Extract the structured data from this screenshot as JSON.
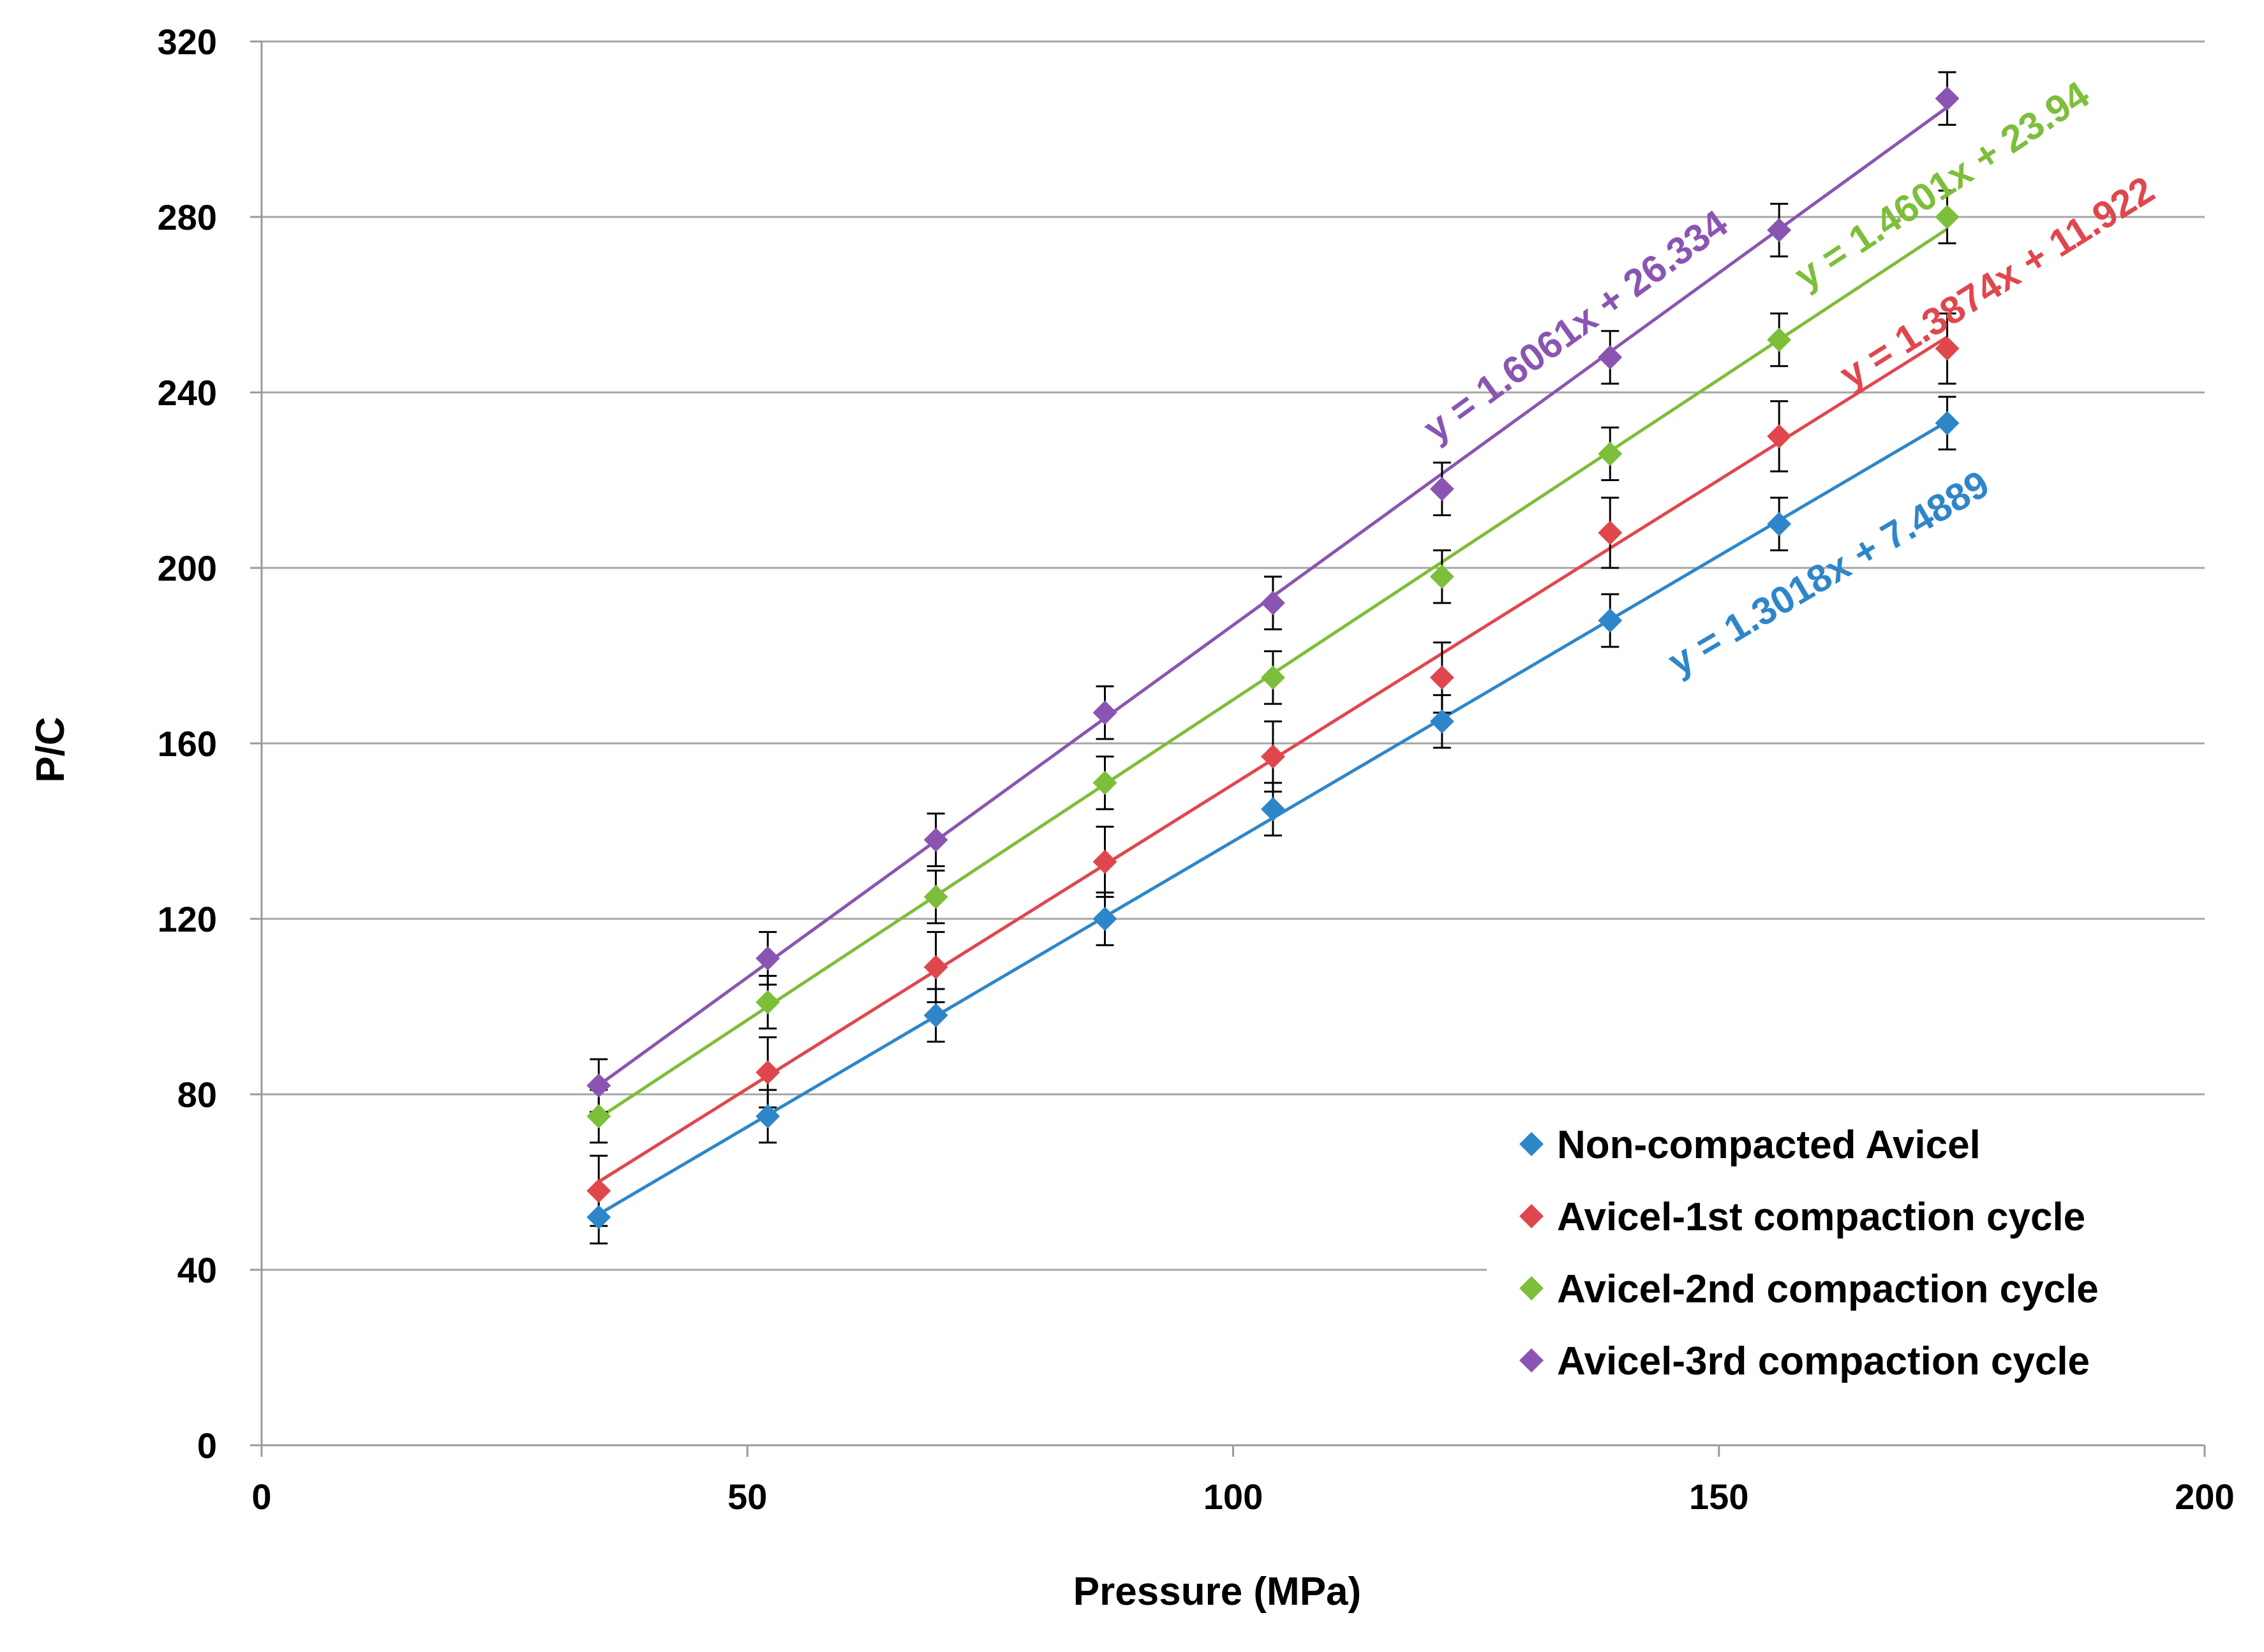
{
  "chart_data": {
    "type": "scatter",
    "title": "",
    "xlabel": "Pressure  (MPa)",
    "ylabel": "P/C",
    "xlim": [
      0,
      200
    ],
    "ylim": [
      0,
      320
    ],
    "x_ticks": [
      0,
      50,
      100,
      150,
      200
    ],
    "x_tick_labels": [
      "0",
      "50",
      "100",
      "150",
      "200"
    ],
    "y_ticks": [
      0,
      40,
      80,
      120,
      160,
      200,
      240,
      280,
      320
    ],
    "y_tick_labels": [
      "0",
      "40",
      "80",
      "120",
      "160",
      "200",
      "240",
      "280",
      "320"
    ],
    "grid": "horizontal",
    "legend_position": "bottom-right",
    "x": [
      34.7,
      52.1,
      69.4,
      86.8,
      104.1,
      121.5,
      138.8,
      156.2,
      173.5
    ],
    "series": [
      {
        "name": "Non-compacted Avicel",
        "color": "#2E86C9",
        "marker": "diamond",
        "values": [
          52,
          75,
          98,
          120,
          145,
          165,
          188,
          210,
          233
        ],
        "errors": [
          6,
          6,
          6,
          6,
          6,
          6,
          6,
          6,
          6
        ],
        "trendline": {
          "slope": 1.3018,
          "intercept": 7.4889,
          "label": "y = 1.3018x + 7.4889"
        }
      },
      {
        "name": "Avicel-1st compaction cycle",
        "color": "#E0474C",
        "marker": "diamond",
        "values": [
          58,
          85,
          109,
          133,
          157,
          175,
          208,
          230,
          250
        ],
        "errors": [
          8,
          8,
          8,
          8,
          8,
          8,
          8,
          8,
          8
        ],
        "trendline": {
          "slope": 1.3874,
          "intercept": 11.922,
          "label": "y = 1.3874x + 11.922"
        }
      },
      {
        "name": "Avicel-2nd compaction cycle",
        "color": "#7DBE3A",
        "marker": "diamond",
        "values": [
          75,
          101,
          125,
          151,
          175,
          198,
          226,
          252,
          280
        ],
        "errors": [
          6,
          6,
          6,
          6,
          6,
          6,
          6,
          6,
          6
        ],
        "trendline": {
          "slope": 1.4601,
          "intercept": 23.94,
          "label": "y = 1.4601x + 23.94"
        }
      },
      {
        "name": "Avicel-3rd compaction cycle",
        "color": "#8A55B2",
        "marker": "diamond",
        "values": [
          82,
          111,
          138,
          167,
          192,
          218,
          248,
          277,
          307
        ],
        "errors": [
          6,
          6,
          6,
          6,
          6,
          6,
          6,
          6,
          6
        ],
        "trendline": {
          "slope": 1.6061,
          "intercept": 26.334,
          "label": "y = 1.6061x + 26.334"
        }
      }
    ]
  }
}
